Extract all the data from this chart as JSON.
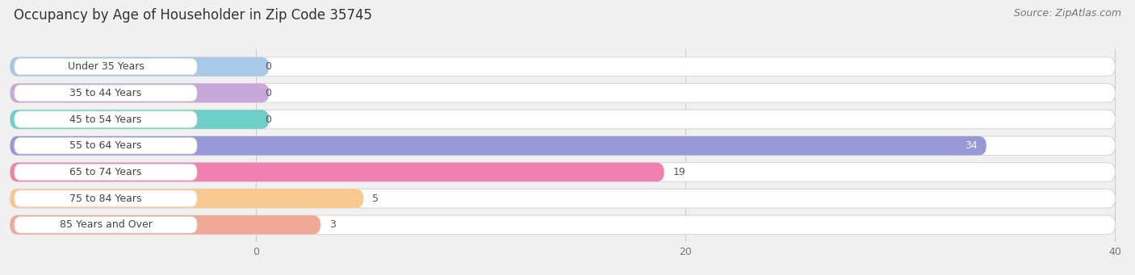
{
  "title": "Occupancy by Age of Householder in Zip Code 35745",
  "source": "Source: ZipAtlas.com",
  "categories": [
    "Under 35 Years",
    "35 to 44 Years",
    "45 to 54 Years",
    "55 to 64 Years",
    "65 to 74 Years",
    "75 to 84 Years",
    "85 Years and Over"
  ],
  "values": [
    0,
    0,
    0,
    34,
    19,
    5,
    3
  ],
  "bar_colors": [
    "#a8c8e8",
    "#c8a8d8",
    "#6ecec8",
    "#9898d8",
    "#f080b0",
    "#f8c890",
    "#f0a898"
  ],
  "xlim_max": 40,
  "xticks": [
    0,
    20,
    40
  ],
  "bg_color": "#f0f0f0",
  "row_bg_color": "#ffffff",
  "row_border_color": "#d8d8d8",
  "title_fontsize": 12,
  "source_fontsize": 9,
  "label_fontsize": 9,
  "value_fontsize": 9,
  "bar_height": 0.72,
  "fig_width": 14.06,
  "fig_height": 3.41,
  "label_pill_color": "#ffffff",
  "label_pill_border": "#e0e0e0",
  "zero_bar_extent": 0.0
}
